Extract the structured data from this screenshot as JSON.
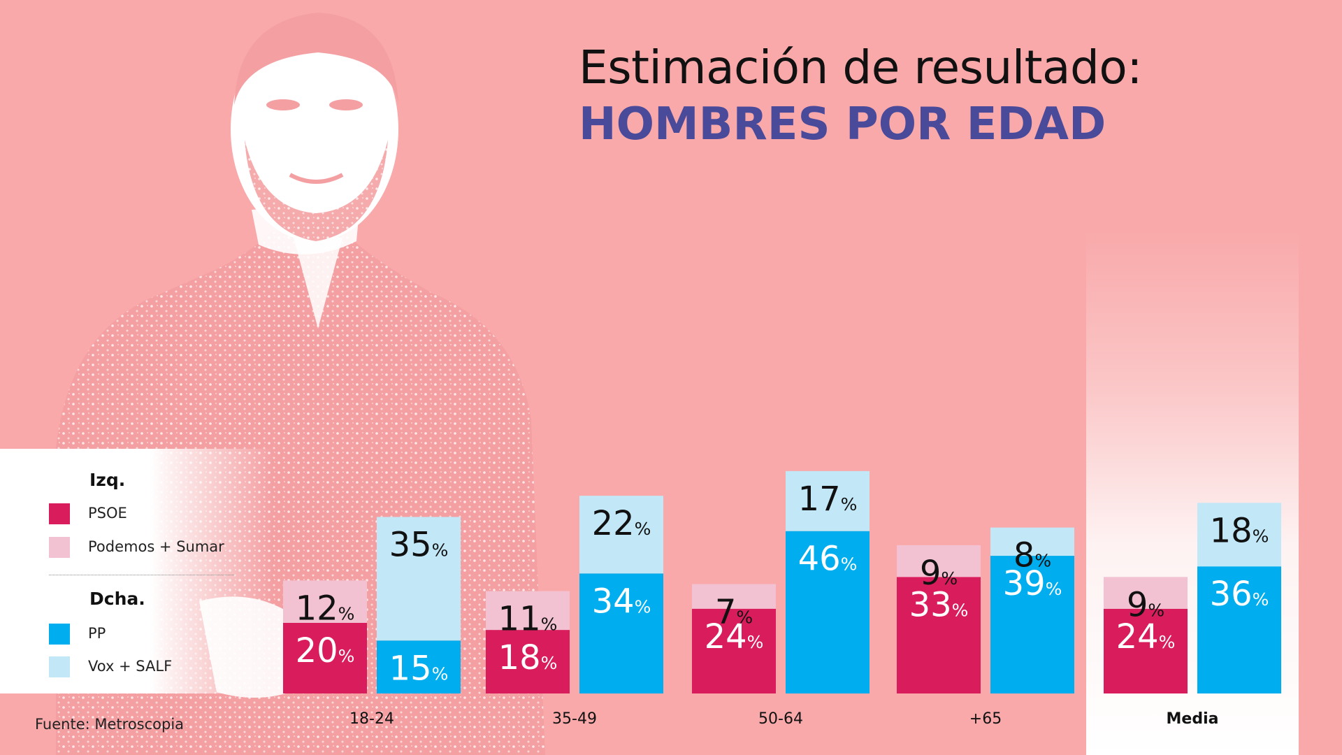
{
  "title": {
    "line1": "Estimación de resultado:",
    "line2": "HOMBRES POR EDAD"
  },
  "legend": {
    "left_heading": "Izq.",
    "right_heading": "Dcha.",
    "items": [
      {
        "label": "PSOE",
        "color": "#d91d5c"
      },
      {
        "label": "Podemos + Sumar",
        "color": "#f2c1d2"
      },
      {
        "label": "PP",
        "color": "#00aeef"
      },
      {
        "label": "Vox + SALF",
        "color": "#c2e8f8"
      }
    ]
  },
  "source": "Fuente: Metroscopia",
  "colors": {
    "background": "#f9a9aa",
    "psoe": "#d91d5c",
    "podemos_sumar": "#f2c1d2",
    "pp": "#00aeef",
    "vox_salf": "#c2e8f8",
    "title_accent": "#4a4a9a"
  },
  "chart_data": {
    "type": "bar",
    "stacked": true,
    "grouped": true,
    "categories": [
      "18-24",
      "35-49",
      "50-64",
      "+65",
      "Media"
    ],
    "groups": [
      {
        "name": "Izq.",
        "series": [
          {
            "name": "PSOE",
            "values": [
              20,
              18,
              24,
              33,
              24
            ]
          },
          {
            "name": "Podemos + Sumar",
            "values": [
              12,
              11,
              7,
              9,
              9
            ]
          }
        ]
      },
      {
        "name": "Dcha.",
        "series": [
          {
            "name": "PP",
            "values": [
              15,
              34,
              46,
              39,
              36
            ]
          },
          {
            "name": "Vox + SALF",
            "values": [
              35,
              22,
              17,
              8,
              18
            ]
          }
        ]
      }
    ],
    "value_suffix": "%",
    "ylim": [
      0,
      66
    ],
    "highlighted_category": "Media",
    "grid": false,
    "legend_position": "bottom-left"
  }
}
